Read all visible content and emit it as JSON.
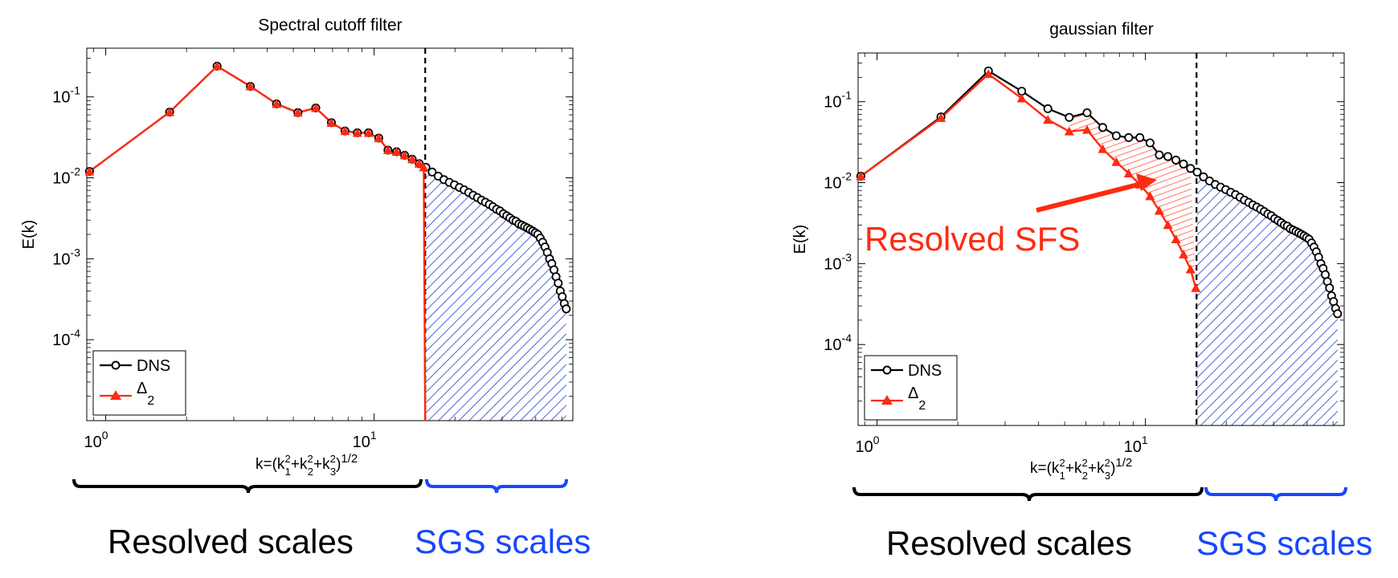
{
  "chart_data": [
    {
      "type": "line",
      "title": "Spectral cutoff filter",
      "xscale": "log",
      "yscale": "log",
      "xlim": [
        0.85,
        55
      ],
      "ylim": [
        1e-05,
        0.4
      ],
      "ylabel": "E(k)",
      "xlabel": {
        "base": "k=(k",
        "s1": "1",
        "s2": "2",
        "s3": "3",
        "sq": "2",
        "plus": "+k",
        "close": ")",
        "exp": "1/2"
      },
      "xticks": [
        {
          "value": 1,
          "base": "10",
          "exp": "0"
        },
        {
          "value": 10,
          "base": "10",
          "exp": "1"
        }
      ],
      "yticks": [
        {
          "value": 0.1,
          "base": "10",
          "exp": "-1"
        },
        {
          "value": 0.01,
          "base": "10",
          "exp": "-2"
        },
        {
          "value": 0.001,
          "base": "10",
          "exp": "-3"
        },
        {
          "value": 0.0001,
          "base": "10",
          "exp": "-4"
        }
      ],
      "legend_position": "bottom-left",
      "legend": {
        "dns": "DNS",
        "filtered_base": "Δ",
        "filtered_sub": "2"
      },
      "cutoff_k": 15.5,
      "series": [
        {
          "name": "DNS",
          "color": "#000000",
          "marker": "circle",
          "x": [
            0.87,
            1.73,
            2.6,
            3.46,
            4.33,
            5.2,
            6.06,
            6.93,
            7.79,
            8.66,
            9.53,
            10.4,
            11.26,
            12.12,
            12.99,
            13.86,
            14.72,
            15.59,
            16.45,
            17.32,
            18.19,
            19.05,
            19.92,
            20.78,
            21.65,
            22.52,
            23.38,
            24.25,
            25.11,
            25.98,
            26.85,
            27.71,
            28.58,
            29.44,
            30.31,
            31.18,
            32.04,
            32.91,
            33.77,
            34.64,
            35.51,
            36.37,
            37.24,
            38.1,
            38.97,
            39.84,
            40.7,
            41.57,
            42.44,
            43.3,
            44.17,
            45.03,
            45.9,
            46.77,
            47.63,
            48.5,
            49.36,
            50.23,
            51.1,
            51.96
          ],
          "y": [
            0.012,
            0.065,
            0.24,
            0.135,
            0.082,
            0.064,
            0.073,
            0.048,
            0.038,
            0.036,
            0.036,
            0.031,
            0.022,
            0.021,
            0.019,
            0.017,
            0.015,
            0.0135,
            0.0118,
            0.0105,
            0.0095,
            0.0088,
            0.0082,
            0.0076,
            0.0071,
            0.0066,
            0.0061,
            0.0057,
            0.0053,
            0.005,
            0.0047,
            0.0044,
            0.0041,
            0.0039,
            0.0036,
            0.0034,
            0.0032,
            0.003,
            0.0029,
            0.0027,
            0.0026,
            0.0025,
            0.0024,
            0.0023,
            0.0022,
            0.0021,
            0.002,
            0.0018,
            0.0016,
            0.0014,
            0.0012,
            0.001,
            0.00087,
            0.00073,
            0.0006,
            0.0005,
            0.0004,
            0.00034,
            0.00028,
            0.00024
          ]
        },
        {
          "name": "Δ2",
          "color": "#ff2a12",
          "marker": "triangle",
          "x": [
            0.87,
            1.73,
            2.6,
            3.46,
            4.33,
            5.2,
            6.06,
            6.93,
            7.79,
            8.66,
            9.53,
            10.4,
            11.26,
            12.12,
            12.99,
            13.86,
            14.72,
            15.3
          ],
          "y": [
            0.012,
            0.065,
            0.24,
            0.135,
            0.082,
            0.064,
            0.073,
            0.048,
            0.038,
            0.036,
            0.036,
            0.031,
            0.022,
            0.021,
            0.019,
            0.017,
            0.015,
            0.0135
          ]
        }
      ],
      "bracket_labels": {
        "resolved": "Resolved scales",
        "sgs": "SGS scales"
      }
    },
    {
      "type": "line",
      "title": "gaussian filter",
      "xscale": "log",
      "yscale": "log",
      "xlim": [
        0.85,
        55
      ],
      "ylim": [
        1e-05,
        0.4
      ],
      "ylabel": "E(k)",
      "xlabel": {
        "base": "k=(k",
        "s1": "1",
        "s2": "2",
        "s3": "3",
        "sq": "2",
        "plus": "+k",
        "close": ")",
        "exp": "1/2"
      },
      "xticks": [
        {
          "value": 1,
          "base": "10",
          "exp": "0"
        },
        {
          "value": 10,
          "base": "10",
          "exp": "1"
        }
      ],
      "yticks": [
        {
          "value": 0.1,
          "base": "10",
          "exp": "-1"
        },
        {
          "value": 0.01,
          "base": "10",
          "exp": "-2"
        },
        {
          "value": 0.001,
          "base": "10",
          "exp": "-3"
        },
        {
          "value": 0.0001,
          "base": "10",
          "exp": "-4"
        }
      ],
      "legend_position": "bottom-left",
      "legend": {
        "dns": "DNS",
        "filtered_base": "Δ",
        "filtered_sub": "2"
      },
      "cutoff_k": 15.5,
      "annotation": "Resolved SFS",
      "series": [
        {
          "name": "DNS",
          "color": "#000000",
          "marker": "circle",
          "x": [
            0.87,
            1.73,
            2.6,
            3.46,
            4.33,
            5.2,
            6.06,
            6.93,
            7.79,
            8.66,
            9.53,
            10.4,
            11.26,
            12.12,
            12.99,
            13.86,
            14.72,
            15.59,
            16.45,
            17.32,
            18.19,
            19.05,
            19.92,
            20.78,
            21.65,
            22.52,
            23.38,
            24.25,
            25.11,
            25.98,
            26.85,
            27.71,
            28.58,
            29.44,
            30.31,
            31.18,
            32.04,
            32.91,
            33.77,
            34.64,
            35.51,
            36.37,
            37.24,
            38.1,
            38.97,
            39.84,
            40.7,
            41.57,
            42.44,
            43.3,
            44.17,
            45.03,
            45.9,
            46.77,
            47.63,
            48.5,
            49.36,
            50.23,
            51.1,
            51.96
          ],
          "y": [
            0.012,
            0.065,
            0.24,
            0.135,
            0.082,
            0.064,
            0.073,
            0.048,
            0.038,
            0.036,
            0.036,
            0.031,
            0.022,
            0.021,
            0.019,
            0.017,
            0.015,
            0.0135,
            0.0118,
            0.0105,
            0.0095,
            0.0088,
            0.0082,
            0.0076,
            0.0071,
            0.0066,
            0.0061,
            0.0057,
            0.0053,
            0.005,
            0.0047,
            0.0044,
            0.0041,
            0.0039,
            0.0036,
            0.0034,
            0.0032,
            0.003,
            0.0029,
            0.0027,
            0.0026,
            0.0025,
            0.0024,
            0.0023,
            0.0022,
            0.0021,
            0.002,
            0.0018,
            0.0016,
            0.0014,
            0.0012,
            0.001,
            0.00087,
            0.00073,
            0.0006,
            0.0005,
            0.0004,
            0.00034,
            0.00028,
            0.00024
          ]
        },
        {
          "name": "Δ2",
          "color": "#ff2a12",
          "marker": "triangle",
          "x": [
            0.87,
            1.73,
            2.6,
            3.46,
            4.33,
            5.2,
            6.06,
            6.93,
            7.79,
            8.66,
            9.53,
            10.4,
            11.26,
            12.12,
            12.99,
            13.86,
            14.72,
            15.4
          ],
          "y": [
            0.012,
            0.063,
            0.22,
            0.11,
            0.06,
            0.043,
            0.045,
            0.026,
            0.018,
            0.013,
            0.0095,
            0.0068,
            0.0045,
            0.003,
            0.002,
            0.0013,
            0.00085,
            0.0005
          ]
        }
      ],
      "bracket_labels": {
        "resolved": "Resolved scales",
        "sgs": "SGS scales"
      }
    }
  ],
  "colors": {
    "dns": "#000000",
    "filtered": "#ff2a12",
    "sgs_hatch": "#1f3fc9",
    "sfs_hatch": "#ff2a12",
    "bracket_resolved": "#000000",
    "bracket_sgs": "#1747ff"
  }
}
